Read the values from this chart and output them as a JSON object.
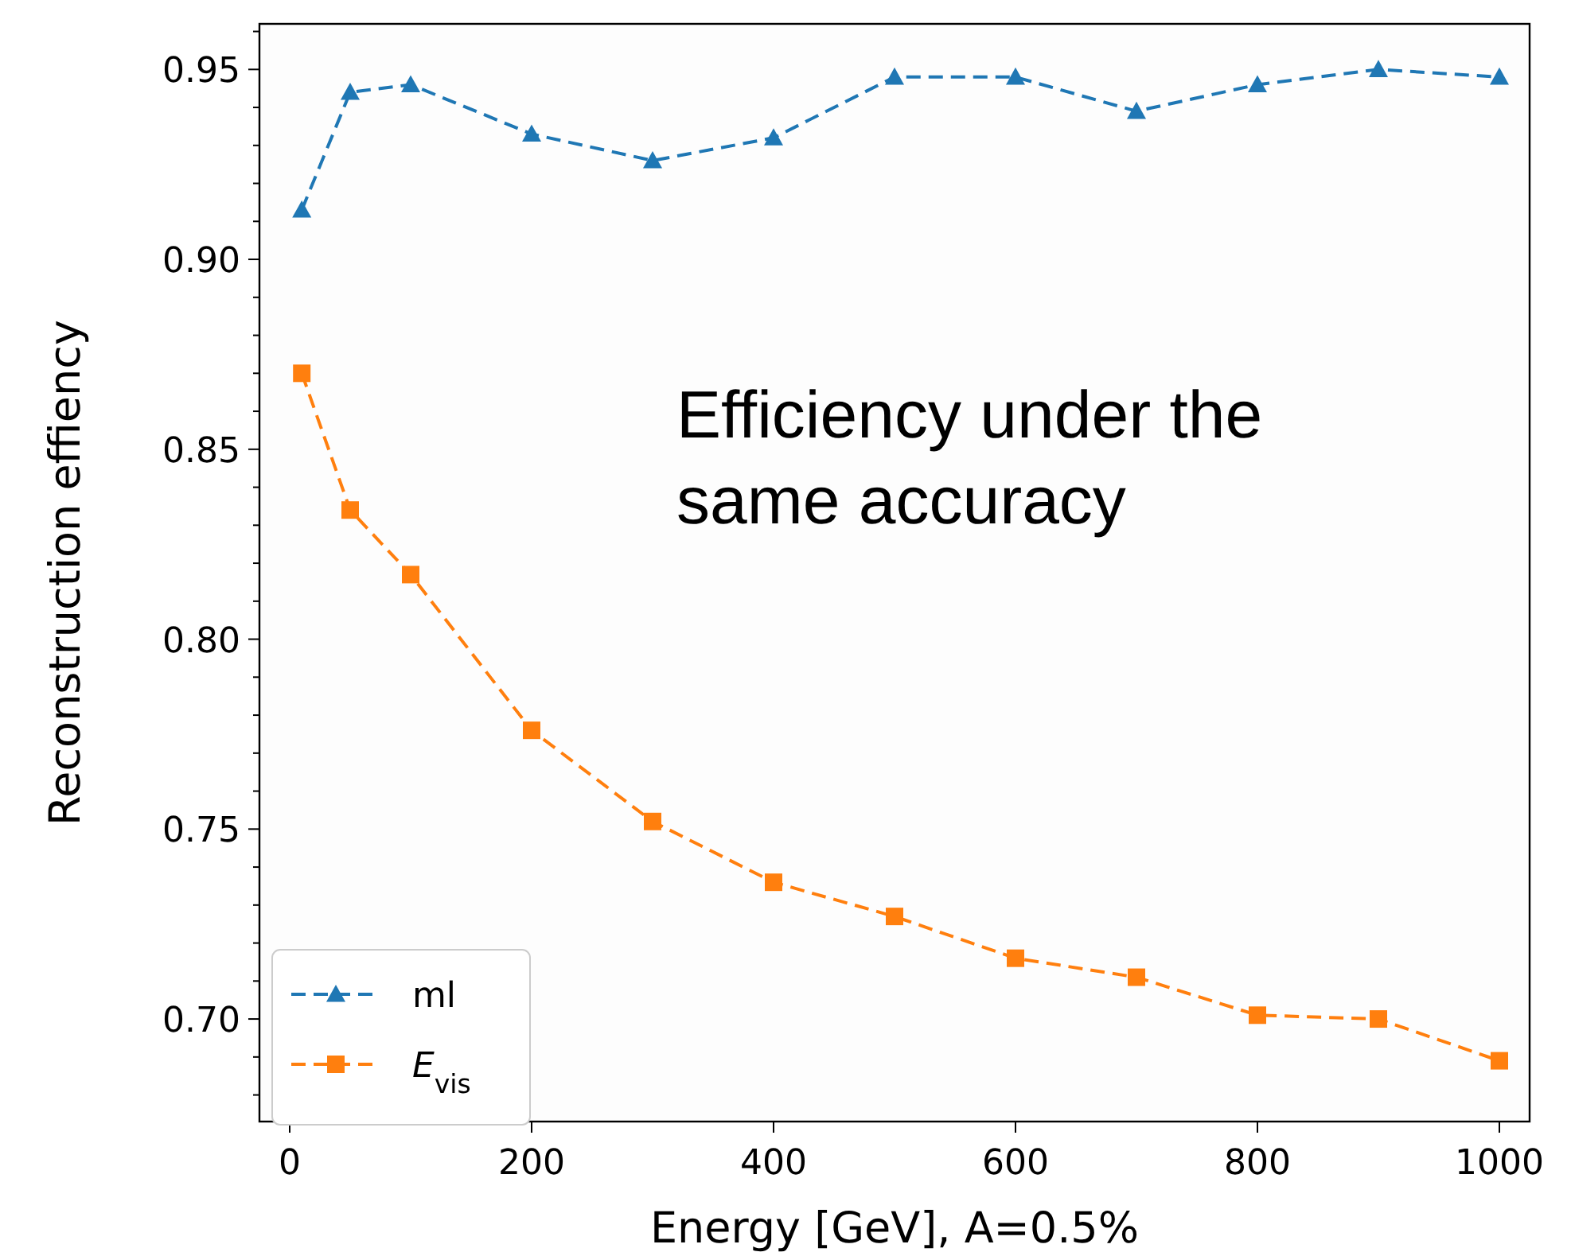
{
  "chart_data": {
    "type": "line",
    "xlabel": "Energy [GeV], A=0.5%",
    "ylabel": "Reconstruction effiency",
    "annotations": [
      "Efficiency under the same accuracy"
    ],
    "x": [
      10,
      50,
      100,
      200,
      300,
      400,
      500,
      600,
      700,
      800,
      900,
      1000
    ],
    "series": [
      {
        "name": "ml",
        "color": "#1f77b4",
        "marker": "triangle",
        "values": [
          0.913,
          0.944,
          0.946,
          0.933,
          0.926,
          0.932,
          0.948,
          0.948,
          0.939,
          0.946,
          0.95,
          0.948
        ]
      },
      {
        "name": "E$_{vis}$",
        "color": "#ff7f0e",
        "marker": "square",
        "values": [
          0.87,
          0.834,
          0.817,
          0.776,
          0.752,
          0.736,
          0.727,
          0.716,
          0.711,
          0.701,
          0.7,
          0.689
        ]
      }
    ],
    "line_style": "dashed",
    "legend": "bottom left",
    "grid": false,
    "xlim": [
      -25,
      1025
    ],
    "xticks": [
      0,
      200,
      400,
      600,
      800,
      1000
    ],
    "ylim": [
      0.673,
      0.962
    ],
    "yticks": [
      {
        "value": 0.7,
        "label": "0.70"
      },
      {
        "value": 0.71,
        "label": null
      },
      {
        "value": 0.72,
        "label": null
      },
      {
        "value": 0.73,
        "label": null
      },
      {
        "value": 0.74,
        "label": null
      },
      0.75,
      {
        "value": 0.76,
        "label": null
      },
      {
        "value": 0.77,
        "label": null
      },
      {
        "value": 0.78,
        "label": null
      },
      {
        "value": 0.79,
        "label": null
      },
      {
        "value": 0.8,
        "label": "0.80"
      },
      {
        "value": 0.81,
        "label": null
      },
      {
        "value": 0.82,
        "label": null
      },
      {
        "value": 0.83,
        "label": null
      },
      {
        "value": 0.84,
        "label": null
      },
      0.85,
      {
        "value": 0.86,
        "label": null
      },
      {
        "value": 0.87,
        "label": null
      },
      {
        "value": 0.88,
        "label": null
      },
      {
        "value": 0.89,
        "label": null
      },
      {
        "value": 0.9,
        "label": "0.90"
      },
      {
        "value": 0.91,
        "label": null
      },
      {
        "value": 0.92,
        "label": null
      },
      {
        "value": 0.93,
        "label": null
      },
      {
        "value": 0.94,
        "label": null
      },
      0.95,
      {
        "value": 0.68,
        "label": null
      },
      {
        "value": 0.69,
        "label": null
      },
      {
        "value": 0.96,
        "label": null
      }
    ]
  }
}
